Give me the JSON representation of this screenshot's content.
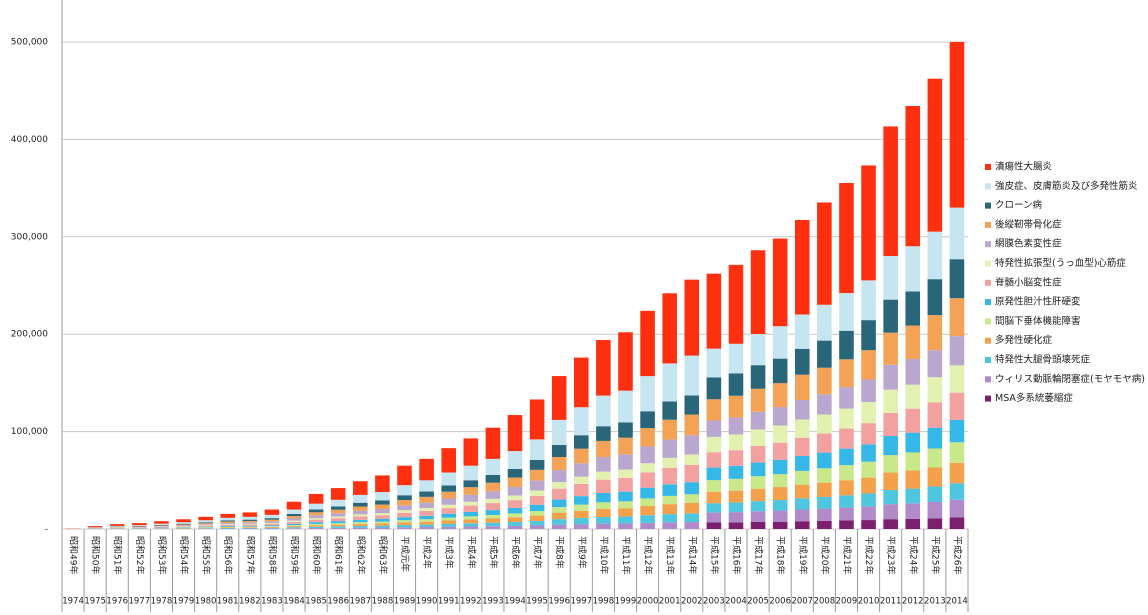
{
  "chart_data": {
    "type": "stacked_bar",
    "categories": [
      "昭和49年",
      "昭和50年",
      "昭和51年",
      "昭和52年",
      "昭和53年",
      "昭和54年",
      "昭和55年",
      "昭和56年",
      "昭和57年",
      "昭和58年",
      "昭和59年",
      "昭和60年",
      "昭和61年",
      "昭和62年",
      "昭和63年",
      "平成元年",
      "平成2年",
      "平成3年",
      "平成4年",
      "平成5年",
      "平成6年",
      "平成7年",
      "平成8年",
      "平成9年",
      "平成10年",
      "平成11年",
      "平成12年",
      "平成13年",
      "平成14年",
      "平成15年",
      "平成16年",
      "平成17年",
      "平成18年",
      "平成19年",
      "平成20年",
      "平成21年",
      "平成22年",
      "平成23年",
      "平成24年",
      "平成25年",
      "平成26年"
    ],
    "category_years": [
      "1974",
      "1975",
      "1976",
      "1977",
      "1978",
      "1979",
      "1980",
      "1981",
      "1982",
      "1983",
      "1984",
      "1985",
      "1986",
      "1987",
      "1988",
      "1989",
      "1990",
      "1991",
      "1992",
      "1993",
      "1994",
      "1995",
      "1996",
      "1997",
      "1998",
      "1999",
      "2000",
      "2001",
      "2002",
      "2003",
      "2004",
      "2005",
      "2006",
      "2007",
      "2008",
      "2009",
      "2010",
      "2011",
      "2012",
      "2013",
      "2014"
    ],
    "ylim": [
      0,
      500000
    ],
    "yticks": [
      {
        "value": 0,
        "label": "-"
      },
      {
        "value": 100000,
        "label": "100,000"
      },
      {
        "value": 200000,
        "label": "200,000"
      },
      {
        "value": 300000,
        "label": "300,000"
      },
      {
        "value": 400000,
        "label": "400,000"
      },
      {
        "value": 500000,
        "label": "500,000"
      }
    ],
    "grid": true,
    "legend": "right",
    "series": [
      {
        "name": "MSA多系統萎縮症",
        "color": "#7b1f6e",
        "values": [
          0,
          0,
          0,
          0,
          0,
          0,
          0,
          0,
          0,
          0,
          0,
          0,
          0,
          0,
          0,
          0,
          0,
          0,
          0,
          0,
          0,
          0,
          0,
          0,
          0,
          0,
          0,
          0,
          0,
          6660,
          6840,
          7200,
          7488,
          7920,
          8280,
          8712,
          9180,
          10080,
          10440,
          10980,
          12000
        ]
      },
      {
        "name": "ウィリス動脈輪閉塞症(モヤモヤ病)",
        "color": "#b18ac9",
        "values": [
          8,
          72,
          128,
          160,
          220,
          280,
          360,
          460,
          500,
          580,
          800,
          1040,
          1200,
          1400,
          1520,
          1800,
          2000,
          2320,
          2600,
          2880,
          3200,
          3680,
          4480,
          5000,
          5480,
          5680,
          6280,
          6800,
          7120,
          10175,
          10450,
          11000,
          11440,
          12100,
          12650,
          13310,
          14025,
          15400,
          15950,
          16775,
          18000
        ]
      },
      {
        "name": "特発性大腿骨頭壊死症",
        "color": "#4fc6e0",
        "values": [
          10,
          90,
          160,
          200,
          275,
          350,
          450,
          575,
          625,
          725,
          1000,
          1300,
          1500,
          1750,
          1900,
          2250,
          2500,
          2900,
          3250,
          3600,
          4000,
          4600,
          5600,
          6250,
          6850,
          7100,
          7850,
          8500,
          8900,
          9620,
          9880,
          10400,
          10816,
          11440,
          11960,
          12584,
          13260,
          14560,
          15080,
          15860,
          17000
        ]
      },
      {
        "name": "多発性硬化症",
        "color": "#f5a04a",
        "values": [
          12,
          108,
          192,
          240,
          330,
          420,
          540,
          690,
          750,
          870,
          1200,
          1560,
          1800,
          2100,
          2280,
          2700,
          3000,
          3480,
          3900,
          4320,
          4800,
          5520,
          6720,
          7500,
          8220,
          8520,
          9420,
          10200,
          10680,
          11840,
          12160,
          12800,
          13312,
          14080,
          14720,
          15488,
          16320,
          17920,
          18560,
          19520,
          21000
        ]
      },
      {
        "name": "間脳下垂体機能障害",
        "color": "#c9e88a",
        "values": [
          10,
          90,
          160,
          200,
          275,
          350,
          450,
          575,
          625,
          725,
          1000,
          1300,
          1500,
          1750,
          1900,
          2250,
          2500,
          2900,
          3250,
          3600,
          4000,
          4600,
          5600,
          6250,
          6850,
          7100,
          7850,
          8500,
          8900,
          11840,
          12160,
          12800,
          13312,
          14080,
          14720,
          15488,
          16320,
          17920,
          18560,
          19520,
          21000
        ]
      },
      {
        "name": "原発性胆汁性肝硬変",
        "color": "#35b8e8",
        "values": [
          14,
          126,
          224,
          280,
          385,
          490,
          630,
          805,
          875,
          1015,
          1400,
          1820,
          2100,
          2450,
          2660,
          3150,
          3500,
          4060,
          4550,
          5040,
          5600,
          6440,
          7840,
          8750,
          9590,
          9940,
          10990,
          11900,
          12460,
          12950,
          13300,
          14000,
          14560,
          15400,
          16100,
          16940,
          17850,
          19600,
          20300,
          21350,
          23000
        ]
      },
      {
        "name": "脊髄小脳変性症",
        "color": "#f2a0a0",
        "values": [
          20,
          180,
          320,
          400,
          550,
          700,
          900,
          1150,
          1250,
          1450,
          2000,
          2600,
          3000,
          3500,
          3800,
          4500,
          5000,
          5800,
          6500,
          7200,
          8000,
          9200,
          11200,
          12500,
          13700,
          14200,
          15700,
          17000,
          17800,
          15725,
          16150,
          17000,
          17680,
          18700,
          19550,
          20570,
          21675,
          23800,
          24650,
          25925,
          28000
        ]
      },
      {
        "name": "特発性拡張型(うっ血型)心筋症",
        "color": "#e2f0b0",
        "values": [
          12,
          108,
          192,
          240,
          330,
          420,
          540,
          690,
          750,
          870,
          1200,
          1560,
          1800,
          2100,
          2280,
          2700,
          3000,
          3480,
          3900,
          4320,
          4800,
          5520,
          6720,
          7500,
          8220,
          8520,
          9420,
          10200,
          10680,
          15725,
          16150,
          17000,
          17680,
          18700,
          19550,
          20570,
          21675,
          23800,
          24650,
          25925,
          28000
        ]
      },
      {
        "name": "網膜色素変性症",
        "color": "#b9a7d0",
        "values": [
          22,
          198,
          352,
          440,
          605,
          770,
          990,
          1265,
          1375,
          1595,
          2200,
          2860,
          3300,
          3850,
          4180,
          4950,
          5500,
          6380,
          7150,
          7920,
          8800,
          10120,
          12320,
          13750,
          15070,
          15620,
          17270,
          18700,
          19580,
          16835,
          17290,
          18200,
          18928,
          20020,
          20930,
          22022,
          23205,
          25480,
          26390,
          27755,
          30000
        ]
      },
      {
        "name": "後縦靭帯骨化症",
        "color": "#f4a255",
        "values": [
          24,
          216,
          384,
          480,
          660,
          840,
          1080,
          1380,
          1500,
          1740,
          2400,
          3120,
          3600,
          4200,
          4560,
          5400,
          6000,
          6960,
          7800,
          8640,
          9600,
          11040,
          13440,
          15000,
          16440,
          17040,
          18840,
          20400,
          21360,
          21830,
          22420,
          23600,
          24544,
          25960,
          27140,
          28556,
          30090,
          33040,
          34220,
          35990,
          39000
        ]
      },
      {
        "name": "クローン病",
        "color": "#2a6679",
        "values": [
          22,
          198,
          352,
          440,
          605,
          770,
          990,
          1265,
          1375,
          1595,
          2200,
          2860,
          3300,
          3850,
          4180,
          4950,
          5500,
          6380,
          7150,
          7920,
          8800,
          10120,
          12320,
          13750,
          15070,
          15620,
          17270,
          18700,
          19580,
          22385,
          22990,
          24200,
          25168,
          26620,
          27830,
          29282,
          30855,
          33880,
          35090,
          36905,
          40000
        ]
      },
      {
        "name": "強皮症、皮膚筋炎及び多発性筋炎",
        "color": "#c5e5f0",
        "values": [
          46,
          414,
          736,
          920,
          1265,
          1610,
          2070,
          2645,
          2875,
          3335,
          4600,
          5980,
          6900,
          8050,
          8740,
          10350,
          11500,
          13340,
          14950,
          16560,
          18400,
          21160,
          25760,
          28750,
          31510,
          32660,
          36110,
          39100,
          40940,
          29600,
          30400,
          32000,
          33280,
          35200,
          36800,
          38720,
          40800,
          44800,
          46400,
          48800,
          53000
        ]
      },
      {
        "name": "潰瘍性大腸炎",
        "color": "#ff3010",
        "values": [
          300,
          1200,
          1800,
          2000,
          2500,
          3000,
          3500,
          4000,
          4500,
          5500,
          8000,
          10000,
          12000,
          14000,
          17000,
          20000,
          22000,
          25000,
          28000,
          32000,
          37000,
          41000,
          45000,
          51000,
          57000,
          60000,
          67000,
          72000,
          78000,
          77000,
          81000,
          86000,
          90000,
          97000,
          105000,
          113000,
          118000,
          133000,
          144000,
          157000,
          170000
        ]
      }
    ]
  }
}
